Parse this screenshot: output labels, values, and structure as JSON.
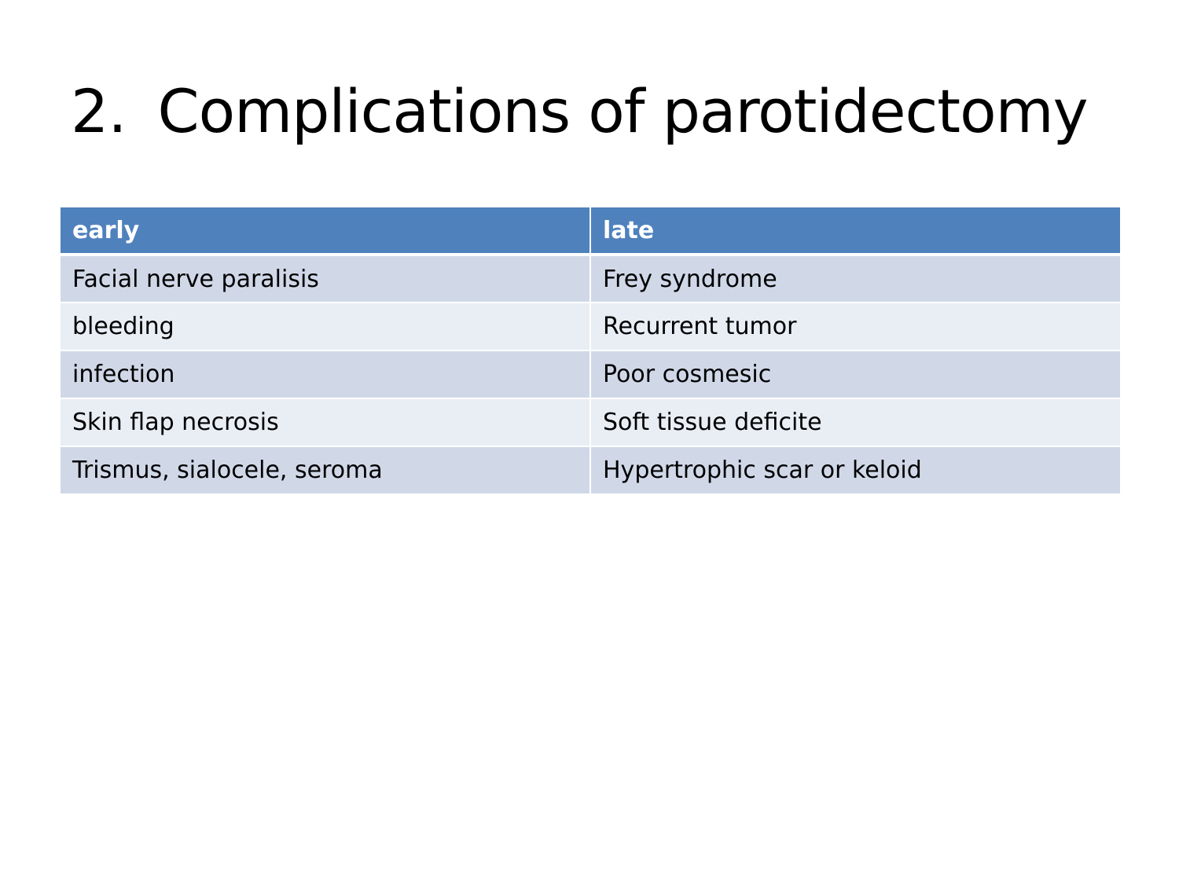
{
  "slide": {
    "title_number": "2.",
    "title_text": "Complications of parotidectomy"
  },
  "table": {
    "headers": [
      "early",
      "late"
    ],
    "rows": [
      [
        "Facial nerve paralisis",
        "Frey syndrome"
      ],
      [
        "bleeding",
        "Recurrent tumor"
      ],
      [
        "infection",
        "Poor cosmesic"
      ],
      [
        "Skin flap necrosis",
        "Soft tissue deficite"
      ],
      [
        "Trismus, sialocele, seroma",
        "Hypertrophic scar or keloid"
      ]
    ]
  },
  "colors": {
    "header_bg": "#4f81bd",
    "row_odd_bg": "#d0d8e8",
    "row_even_bg": "#e9edf4"
  }
}
